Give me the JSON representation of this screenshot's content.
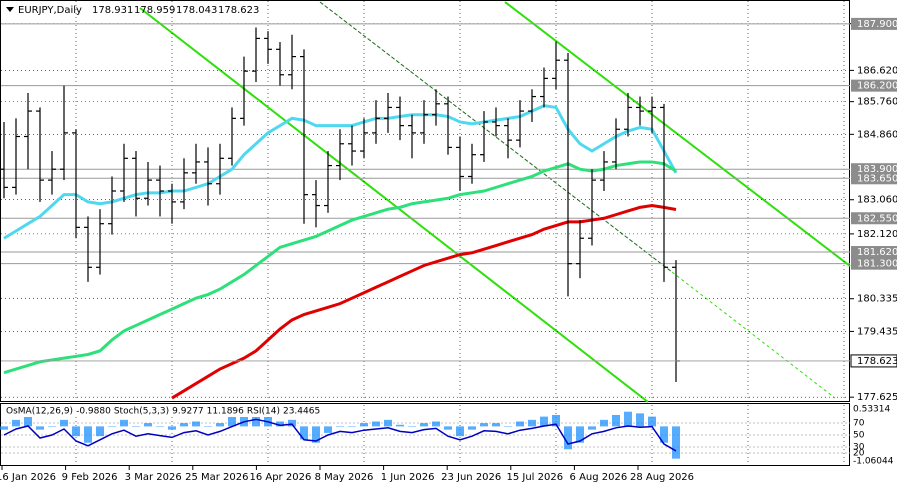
{
  "chart_data": {
    "type": "ohlc",
    "title": "EURJPY,Daily",
    "quote": [
      178.931,
      178.959,
      178.043,
      178.623
    ],
    "ylim": [
      177.52,
      188.53
    ],
    "yticks": [
      187.905,
      {
        "value": 186.62,
        "label": "186.620"
      },
      {
        "value": 185.76,
        "label": "185.760"
      },
      {
        "value": 184.86,
        "label": "184.860"
      },
      {
        "value": 183.06,
        "label": "183.060"
      },
      {
        "value": 182.12,
        "label": "182.120"
      },
      180.335,
      179.435,
      177.625
    ],
    "grid": true,
    "levels": [
      {
        "value": 187.9,
        "label": "187.900"
      },
      {
        "value": 186.2,
        "label": "186.200"
      },
      {
        "value": 183.9,
        "label": "183.900"
      },
      {
        "value": 183.65,
        "label": "183.650"
      },
      {
        "value": 182.55,
        "label": "182.550"
      },
      {
        "value": 181.62,
        "label": "181.620"
      },
      {
        "value": 181.3,
        "label": "181.300"
      }
    ],
    "last_price": 178.623,
    "x_labels": [
      "16 Jan 2026",
      "9 Feb 2026",
      "3 Mar 2026",
      "25 Mar 2026",
      "16 Apr 2026",
      "8 May 2026",
      "1 Jun 2026",
      "23 Jun 2026",
      "15 Jul 2026",
      "6 Aug 2026",
      "28 Aug 2026"
    ],
    "ohlc": [
      [
        183.9,
        185.2,
        183.1,
        183.4
      ],
      [
        183.4,
        185.3,
        183.2,
        184.8
      ],
      [
        184.8,
        186.0,
        183.9,
        185.5
      ],
      [
        185.5,
        185.6,
        183.0,
        183.6
      ],
      [
        183.6,
        184.4,
        183.2,
        183.9
      ],
      [
        183.9,
        186.2,
        183.6,
        184.9
      ],
      [
        184.9,
        185.0,
        182.0,
        182.3
      ],
      [
        182.3,
        182.6,
        180.8,
        181.2
      ],
      [
        181.2,
        182.8,
        181.0,
        182.4
      ],
      [
        182.4,
        183.7,
        182.1,
        183.3
      ],
      [
        183.3,
        184.6,
        183.0,
        184.2
      ],
      [
        184.2,
        184.4,
        182.6,
        183.1
      ],
      [
        183.1,
        184.1,
        182.9,
        183.6
      ],
      [
        183.6,
        184.0,
        182.6,
        183.3
      ],
      [
        183.3,
        183.5,
        182.4,
        183.0
      ],
      [
        183.0,
        184.2,
        182.8,
        183.8
      ],
      [
        183.8,
        184.6,
        183.5,
        184.1
      ],
      [
        184.1,
        184.5,
        182.9,
        183.5
      ],
      [
        183.5,
        184.6,
        183.2,
        184.2
      ],
      [
        184.2,
        185.6,
        184.0,
        185.3
      ],
      [
        185.3,
        187.0,
        185.1,
        186.6
      ],
      [
        186.6,
        187.8,
        186.3,
        187.5
      ],
      [
        187.5,
        187.7,
        186.8,
        187.2
      ],
      [
        187.2,
        187.4,
        186.2,
        186.5
      ],
      [
        186.5,
        187.6,
        186.1,
        187.0
      ],
      [
        187.0,
        187.2,
        182.4,
        183.2
      ],
      [
        183.2,
        183.6,
        182.3,
        182.9
      ],
      [
        182.9,
        184.4,
        182.7,
        184.0
      ],
      [
        184.0,
        185.0,
        183.6,
        184.6
      ],
      [
        184.6,
        185.1,
        184.0,
        184.4
      ],
      [
        184.4,
        185.3,
        184.2,
        184.9
      ],
      [
        184.9,
        185.8,
        184.6,
        185.3
      ],
      [
        185.3,
        186.0,
        184.9,
        185.6
      ],
      [
        185.6,
        185.9,
        184.7,
        185.1
      ],
      [
        185.1,
        185.4,
        184.2,
        184.9
      ],
      [
        184.9,
        185.8,
        184.6,
        185.4
      ],
      [
        185.4,
        186.1,
        185.1,
        185.7
      ],
      [
        185.7,
        185.9,
        184.3,
        184.5
      ],
      [
        184.5,
        184.8,
        183.3,
        183.7
      ],
      [
        183.7,
        184.6,
        183.5,
        184.3
      ],
      [
        184.3,
        185.5,
        184.1,
        185.2
      ],
      [
        185.2,
        185.6,
        184.8,
        185.1
      ],
      [
        185.1,
        185.3,
        184.2,
        184.7
      ],
      [
        184.7,
        185.8,
        184.5,
        185.5
      ],
      [
        185.5,
        186.1,
        185.2,
        185.9
      ],
      [
        185.9,
        186.7,
        185.6,
        186.4
      ],
      [
        186.4,
        187.4,
        186.1,
        186.9
      ],
      [
        186.9,
        187.1,
        180.4,
        181.3
      ],
      [
        181.3,
        182.5,
        180.9,
        182.0
      ],
      [
        182.0,
        183.9,
        181.8,
        183.6
      ],
      [
        183.6,
        184.4,
        183.3,
        184.1
      ],
      [
        184.1,
        185.3,
        183.9,
        185.0
      ],
      [
        185.0,
        186.0,
        184.8,
        185.6
      ],
      [
        185.6,
        185.9,
        185.1,
        185.5
      ],
      [
        185.5,
        185.9,
        184.9,
        185.6
      ],
      [
        185.6,
        185.7,
        180.8,
        181.2
      ],
      [
        181.2,
        181.4,
        178.043,
        178.623
      ]
    ],
    "series": [
      {
        "color": "#4fd8f0",
        "values": [
          182.0,
          182.2,
          182.4,
          182.6,
          182.9,
          183.2,
          183.2,
          183.0,
          182.95,
          183.0,
          183.1,
          183.2,
          183.25,
          183.25,
          183.3,
          183.3,
          183.4,
          183.5,
          183.7,
          183.9,
          184.3,
          184.6,
          184.9,
          185.1,
          185.3,
          185.25,
          185.1,
          185.1,
          185.1,
          185.1,
          185.2,
          185.3,
          185.3,
          185.35,
          185.4,
          185.4,
          185.4,
          185.35,
          185.2,
          185.15,
          185.2,
          185.25,
          185.3,
          185.35,
          185.5,
          185.65,
          185.6,
          185.0,
          184.6,
          184.4,
          184.6,
          184.8,
          184.95,
          185.05,
          185.0,
          184.4,
          183.8
        ]
      },
      {
        "color": "#2ee07a",
        "values": [
          178.3,
          178.4,
          178.5,
          178.6,
          178.65,
          178.7,
          178.75,
          178.8,
          178.9,
          179.2,
          179.45,
          179.6,
          179.75,
          179.9,
          180.05,
          180.2,
          180.35,
          180.45,
          180.6,
          180.8,
          181.0,
          181.25,
          181.5,
          181.75,
          181.85,
          181.95,
          182.05,
          182.2,
          182.35,
          182.5,
          182.6,
          182.7,
          182.8,
          182.85,
          182.95,
          183.0,
          183.05,
          183.1,
          183.2,
          183.25,
          183.3,
          183.4,
          183.5,
          183.6,
          183.7,
          183.85,
          183.95,
          184.05,
          183.9,
          183.85,
          183.9,
          184.0,
          184.05,
          184.1,
          184.1,
          184.05,
          183.85
        ]
      },
      {
        "color": "#e00000",
        "values": [
          null,
          null,
          null,
          null,
          null,
          null,
          null,
          null,
          null,
          null,
          null,
          null,
          null,
          null,
          177.6,
          177.8,
          178.0,
          178.2,
          178.4,
          178.55,
          178.7,
          178.9,
          179.2,
          179.5,
          179.75,
          179.9,
          180.0,
          180.1,
          180.2,
          180.35,
          180.5,
          180.65,
          180.8,
          180.95,
          181.1,
          181.25,
          181.35,
          181.45,
          181.55,
          181.6,
          181.7,
          181.8,
          181.9,
          182.0,
          182.1,
          182.25,
          182.35,
          182.45,
          182.45,
          182.5,
          182.55,
          182.65,
          182.75,
          182.85,
          182.9,
          182.85,
          182.79
        ]
      }
    ],
    "indicators": [
      {
        "name": "OsMA(12,26,9)",
        "values": [
          {
            "value": -0.988,
            "label": "-0.9880"
          }
        ]
      },
      {
        "name": "Stoch(5,3,3)",
        "values": [
          9.9277,
          11.1896
        ]
      },
      {
        "name": "RSI(14)",
        "values": [
          23.4465
        ]
      }
    ],
    "osma": {
      "color": "#1e90ff",
      "ylim": [
        -1.06044,
        0.53314
      ],
      "yticks": [
        0.53314,
        -1.06044
      ],
      "values": [
        -0.1,
        0.2,
        0.3,
        -0.1,
        0.0,
        0.2,
        -0.3,
        -0.5,
        -0.3,
        0.0,
        0.2,
        0.0,
        0.1,
        0.0,
        -0.1,
        0.1,
        0.15,
        0.0,
        0.1,
        0.3,
        0.45,
        0.5,
        0.35,
        0.15,
        0.2,
        -0.4,
        -0.5,
        -0.2,
        0.0,
        0.0,
        0.1,
        0.15,
        0.2,
        0.05,
        0.0,
        0.1,
        0.15,
        -0.1,
        -0.3,
        -0.1,
        0.1,
        0.1,
        0.0,
        0.15,
        0.2,
        0.3,
        0.35,
        -0.7,
        -0.5,
        -0.1,
        0.2,
        0.35,
        0.45,
        0.4,
        0.3,
        -0.5,
        -0.988
      ]
    },
    "rsi": {
      "color": "#0000c0",
      "ylim": [
        0,
        100
      ],
      "yticks": [
        70,
        50,
        30,
        20
      ],
      "values": [
        50,
        60,
        65,
        45,
        50,
        60,
        40,
        32,
        42,
        52,
        58,
        48,
        52,
        49,
        46,
        54,
        57,
        50,
        56,
        64,
        72,
        76,
        72,
        66,
        68,
        42,
        40,
        50,
        56,
        54,
        58,
        60,
        62,
        56,
        54,
        59,
        61,
        48,
        42,
        48,
        57,
        56,
        52,
        58,
        61,
        65,
        68,
        35,
        40,
        52,
        56,
        62,
        65,
        63,
        64,
        35,
        23.4465
      ]
    }
  }
}
